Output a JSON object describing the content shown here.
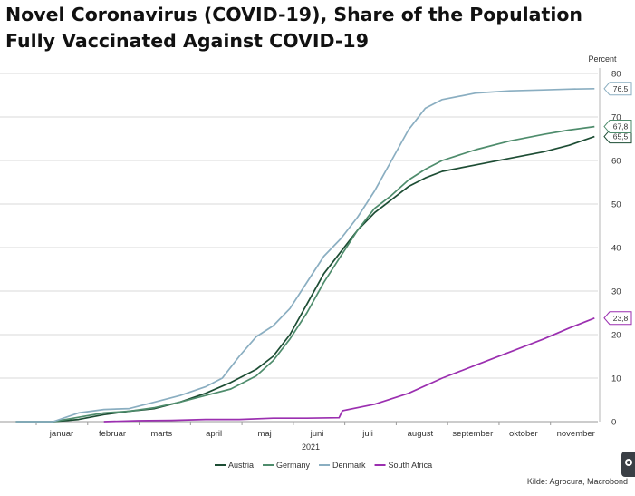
{
  "title": "Novel Coronavirus (COVID-19), Share of the Population Fully Vaccinated Against COVID-19",
  "source": "Kilde: Agrocura, Macrobond",
  "chart_data": {
    "type": "line",
    "title": "Novel Coronavirus (COVID-19), Share of the Population Fully Vaccinated Against COVID-19",
    "xlabel": "2021",
    "ylabel": "Percent",
    "ylim": [
      0,
      80
    ],
    "yticks": [
      0,
      10,
      20,
      30,
      40,
      50,
      60,
      70,
      80
    ],
    "grid": true,
    "legend_position": "bottom",
    "x_ticks": [
      "januar",
      "februar",
      "marts",
      "april",
      "maj",
      "juni",
      "juli",
      "august",
      "september",
      "oktober",
      "november"
    ],
    "x_tick_days": [
      15,
      45,
      74,
      105,
      135,
      166,
      196,
      227,
      258,
      288,
      319
    ],
    "x_range_days": [
      -15,
      332
    ],
    "series": [
      {
        "name": "Austria",
        "color": "#1d4d34",
        "end_label": "65,5",
        "x": [
          -12,
          10,
          25,
          40,
          55,
          70,
          85,
          100,
          115,
          130,
          140,
          150,
          160,
          170,
          180,
          190,
          200,
          210,
          220,
          230,
          240,
          260,
          280,
          300,
          315,
          330
        ],
        "y": [
          0,
          0,
          0.5,
          1.6,
          2.4,
          3.0,
          4.5,
          6.5,
          9,
          12,
          15,
          20,
          27,
          34,
          39,
          44,
          48,
          51,
          54,
          56,
          57.5,
          59,
          60.5,
          62,
          63.5,
          65.5
        ]
      },
      {
        "name": "Germany",
        "color": "#4e8c6c",
        "end_label": "67,8",
        "x": [
          -12,
          10,
          25,
          40,
          55,
          70,
          85,
          100,
          115,
          130,
          140,
          150,
          160,
          170,
          180,
          190,
          200,
          210,
          220,
          230,
          240,
          260,
          280,
          300,
          315,
          330
        ],
        "y": [
          0,
          0,
          1.0,
          2.0,
          2.4,
          3.2,
          4.5,
          6.0,
          7.5,
          10.5,
          14,
          19,
          25,
          32,
          38,
          44,
          49,
          52,
          55.5,
          58,
          60,
          62.5,
          64.5,
          66,
          67,
          67.8
        ]
      },
      {
        "name": "Denmark",
        "color": "#8aaec1",
        "end_label": "76,5",
        "x": [
          -12,
          10,
          25,
          40,
          55,
          70,
          85,
          100,
          110,
          120,
          130,
          140,
          150,
          160,
          170,
          180,
          190,
          200,
          210,
          220,
          230,
          240,
          260,
          280,
          300,
          315,
          330
        ],
        "y": [
          0,
          0,
          2.0,
          2.8,
          3.0,
          4.5,
          6.0,
          8.0,
          10,
          15,
          19.5,
          22,
          26,
          32,
          38,
          42,
          47,
          53,
          60,
          67,
          72,
          74,
          75.5,
          76,
          76.2,
          76.4,
          76.5
        ]
      },
      {
        "name": "South Africa",
        "color": "#9b2fb0",
        "end_label": "23,8",
        "x": [
          40,
          60,
          80,
          100,
          120,
          140,
          160,
          179,
          181,
          200,
          220,
          240,
          260,
          280,
          300,
          315,
          330
        ],
        "y": [
          0,
          0.2,
          0.3,
          0.5,
          0.5,
          0.8,
          0.8,
          0.9,
          2.5,
          4.0,
          6.5,
          10,
          13,
          16,
          19,
          21.5,
          23.8
        ]
      }
    ]
  }
}
